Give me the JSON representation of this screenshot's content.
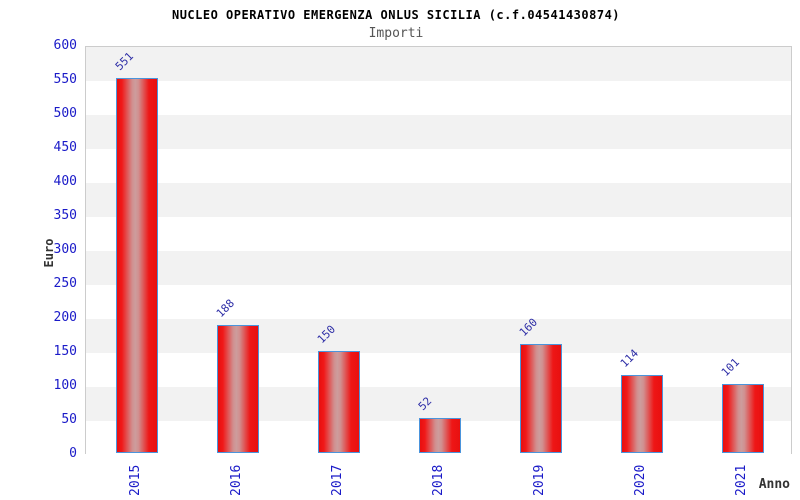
{
  "header": {
    "title": "NUCLEO OPERATIVO EMERGENZA ONLUS SICILIA (c.f.04541430874)",
    "subtitle": "Importi"
  },
  "axes": {
    "y_label": "Euro",
    "x_label": "Anno",
    "y_ticks": [
      600,
      550,
      500,
      450,
      400,
      350,
      300,
      250,
      200,
      150,
      100,
      50,
      0
    ]
  },
  "colors": {
    "bar_fill_edge": "#e81010",
    "bar_fill_center": "#cd9d9d",
    "bar_border": "#4a94dc",
    "tick_label_blue": "#1a1ac8",
    "value_label_blue": "#2d2da6",
    "band_gray": "#f2f2f2",
    "band_white": "#ffffff",
    "plot_border": "#cccccc",
    "title_color": "#000000",
    "subtitle_color": "#555555",
    "axis_title_color": "#333333"
  },
  "chart_data": {
    "type": "bar",
    "title": "NUCLEO OPERATIVO EMERGENZA ONLUS SICILIA (c.f.04541430874)",
    "subtitle": "Importi",
    "categories": [
      "2015",
      "2016",
      "2017",
      "2018",
      "2019",
      "2020",
      "2021"
    ],
    "values": [
      551,
      188,
      150,
      52,
      160,
      114,
      101
    ],
    "xlabel": "Anno",
    "ylabel": "Euro",
    "ylim": [
      0,
      600
    ],
    "y_tick_step": 50,
    "grid": "alternating-horizontal-bands",
    "legend": "none",
    "value_labels_rotation_deg": -45,
    "x_tick_rotation_deg": -90
  }
}
